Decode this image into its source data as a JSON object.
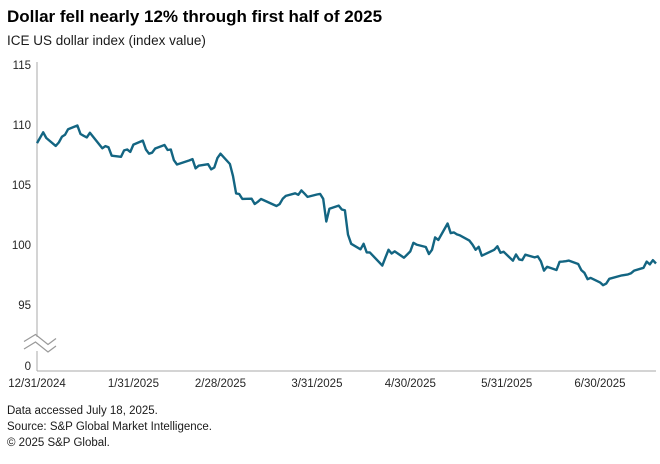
{
  "header": {
    "title": "Dollar fell nearly 12% through first half of 2025",
    "subtitle": "ICE US dollar index (index value)"
  },
  "footer": {
    "line1": "Data accessed July 18, 2025.",
    "line2": "Source: S&P Global Market Intelligence.",
    "line3": "© 2025 S&P Global."
  },
  "chart_data": {
    "type": "line",
    "title": "Dollar fell nearly 12% through first half of 2025",
    "series_name": "ICE US dollar index",
    "xlabel": "",
    "ylabel": "index value",
    "line_color": "#136582",
    "axis_color": "#a8a8a8",
    "ylim": [
      95,
      115
    ],
    "y_axis_break_to_zero": true,
    "grid": false,
    "legend": "none",
    "y_tick_labels": [
      "115",
      "110",
      "105",
      "100",
      "95"
    ],
    "y_ticks": [
      115,
      110,
      105,
      100,
      95
    ],
    "y_base_label": "0",
    "x_tick_labels": [
      "12/31/2024",
      "1/31/2025",
      "2/28/2025",
      "3/31/2025",
      "4/30/2025",
      "5/31/2025",
      "6/30/2025"
    ],
    "points": [
      [
        "12/31/2024",
        108.49
      ],
      [
        "1/2/2025",
        109.39
      ],
      [
        "1/3/2025",
        108.92
      ],
      [
        "1/6/2025",
        108.26
      ],
      [
        "1/7/2025",
        108.54
      ],
      [
        "1/8/2025",
        109.02
      ],
      [
        "1/9/2025",
        109.18
      ],
      [
        "1/10/2025",
        109.65
      ],
      [
        "1/13/2025",
        109.96
      ],
      [
        "1/14/2025",
        109.25
      ],
      [
        "1/15/2025",
        109.1
      ],
      [
        "1/16/2025",
        108.97
      ],
      [
        "1/17/2025",
        109.35
      ],
      [
        "1/21/2025",
        108.06
      ],
      [
        "1/22/2025",
        108.24
      ],
      [
        "1/23/2025",
        108.14
      ],
      [
        "1/24/2025",
        107.44
      ],
      [
        "1/27/2025",
        107.35
      ],
      [
        "1/28/2025",
        107.88
      ],
      [
        "1/29/2025",
        107.96
      ],
      [
        "1/30/2025",
        107.76
      ],
      [
        "1/31/2025",
        108.37
      ],
      [
        "2/3/2025",
        108.7
      ],
      [
        "2/4/2025",
        107.96
      ],
      [
        "2/5/2025",
        107.61
      ],
      [
        "2/6/2025",
        107.69
      ],
      [
        "2/7/2025",
        108.04
      ],
      [
        "2/10/2025",
        108.33
      ],
      [
        "2/11/2025",
        107.92
      ],
      [
        "2/12/2025",
        107.96
      ],
      [
        "2/13/2025",
        107.07
      ],
      [
        "2/14/2025",
        106.71
      ],
      [
        "2/18/2025",
        107.05
      ],
      [
        "2/19/2025",
        107.16
      ],
      [
        "2/20/2025",
        106.38
      ],
      [
        "2/21/2025",
        106.61
      ],
      [
        "2/24/2025",
        106.73
      ],
      [
        "2/25/2025",
        106.3
      ],
      [
        "2/26/2025",
        106.46
      ],
      [
        "2/27/2025",
        107.24
      ],
      [
        "2/28/2025",
        107.61
      ],
      [
        "3/3/2025",
        106.75
      ],
      [
        "3/4/2025",
        105.74
      ],
      [
        "3/5/2025",
        104.3
      ],
      [
        "3/6/2025",
        104.25
      ],
      [
        "3/7/2025",
        103.84
      ],
      [
        "3/10/2025",
        103.86
      ],
      [
        "3/11/2025",
        103.42
      ],
      [
        "3/12/2025",
        103.6
      ],
      [
        "3/13/2025",
        103.83
      ],
      [
        "3/14/2025",
        103.72
      ],
      [
        "3/17/2025",
        103.37
      ],
      [
        "3/18/2025",
        103.25
      ],
      [
        "3/19/2025",
        103.41
      ],
      [
        "3/20/2025",
        103.85
      ],
      [
        "3/21/2025",
        104.09
      ],
      [
        "3/24/2025",
        104.31
      ],
      [
        "3/25/2025",
        104.18
      ],
      [
        "3/26/2025",
        104.55
      ],
      [
        "3/27/2025",
        104.28
      ],
      [
        "3/28/2025",
        104.01
      ],
      [
        "3/31/2025",
        104.21
      ],
      [
        "4/1/2025",
        104.26
      ],
      [
        "4/2/2025",
        103.85
      ],
      [
        "4/3/2025",
        101.96
      ],
      [
        "4/4/2025",
        103.02
      ],
      [
        "4/7/2025",
        103.28
      ],
      [
        "4/8/2025",
        102.96
      ],
      [
        "4/9/2025",
        102.89
      ],
      [
        "4/10/2025",
        100.87
      ],
      [
        "4/11/2025",
        100.1
      ],
      [
        "4/14/2025",
        99.64
      ],
      [
        "4/15/2025",
        100.1
      ],
      [
        "4/16/2025",
        99.38
      ],
      [
        "4/17/2025",
        99.38
      ],
      [
        "4/21/2025",
        98.28
      ],
      [
        "4/22/2025",
        98.95
      ],
      [
        "4/23/2025",
        99.6
      ],
      [
        "4/24/2025",
        99.29
      ],
      [
        "4/25/2025",
        99.47
      ],
      [
        "4/28/2025",
        98.94
      ],
      [
        "4/29/2025",
        99.2
      ],
      [
        "4/30/2025",
        99.47
      ],
      [
        "5/1/2025",
        100.18
      ],
      [
        "5/2/2025",
        100.03
      ],
      [
        "5/5/2025",
        99.83
      ],
      [
        "5/6/2025",
        99.25
      ],
      [
        "5/7/2025",
        99.6
      ],
      [
        "5/8/2025",
        100.63
      ],
      [
        "5/9/2025",
        100.42
      ],
      [
        "5/12/2025",
        101.79
      ],
      [
        "5/13/2025",
        100.99
      ],
      [
        "5/14/2025",
        101.05
      ],
      [
        "5/15/2025",
        100.88
      ],
      [
        "5/16/2025",
        100.8
      ],
      [
        "5/19/2025",
        100.37
      ],
      [
        "5/20/2025",
        100.03
      ],
      [
        "5/21/2025",
        99.6
      ],
      [
        "5/22/2025",
        99.85
      ],
      [
        "5/23/2025",
        99.11
      ],
      [
        "5/27/2025",
        99.6
      ],
      [
        "5/28/2025",
        99.89
      ],
      [
        "5/29/2025",
        99.35
      ],
      [
        "5/30/2025",
        99.44
      ],
      [
        "6/2/2025",
        98.69
      ],
      [
        "6/3/2025",
        99.21
      ],
      [
        "6/4/2025",
        98.8
      ],
      [
        "6/5/2025",
        98.74
      ],
      [
        "6/6/2025",
        99.19
      ],
      [
        "6/9/2025",
        98.97
      ],
      [
        "6/10/2025",
        99.05
      ],
      [
        "6/11/2025",
        98.63
      ],
      [
        "6/12/2025",
        97.87
      ],
      [
        "6/13/2025",
        98.18
      ],
      [
        "6/16/2025",
        97.92
      ],
      [
        "6/17/2025",
        98.6
      ],
      [
        "6/18/2025",
        98.62
      ],
      [
        "6/19/2025",
        98.65
      ],
      [
        "6/20/2025",
        98.7
      ],
      [
        "6/23/2025",
        98.42
      ],
      [
        "6/24/2025",
        97.91
      ],
      [
        "6/25/2025",
        97.68
      ],
      [
        "6/26/2025",
        97.15
      ],
      [
        "6/27/2025",
        97.26
      ],
      [
        "6/30/2025",
        96.88
      ],
      [
        "7/1/2025",
        96.65
      ],
      [
        "7/2/2025",
        96.78
      ],
      [
        "7/3/2025",
        97.18
      ],
      [
        "7/7/2025",
        97.47
      ],
      [
        "7/8/2025",
        97.51
      ],
      [
        "7/9/2025",
        97.55
      ],
      [
        "7/10/2025",
        97.65
      ],
      [
        "7/11/2025",
        97.87
      ],
      [
        "7/14/2025",
        98.1
      ],
      [
        "7/15/2025",
        98.62
      ],
      [
        "7/16/2025",
        98.38
      ],
      [
        "7/17/2025",
        98.73
      ],
      [
        "7/18/2025",
        98.46
      ]
    ]
  }
}
